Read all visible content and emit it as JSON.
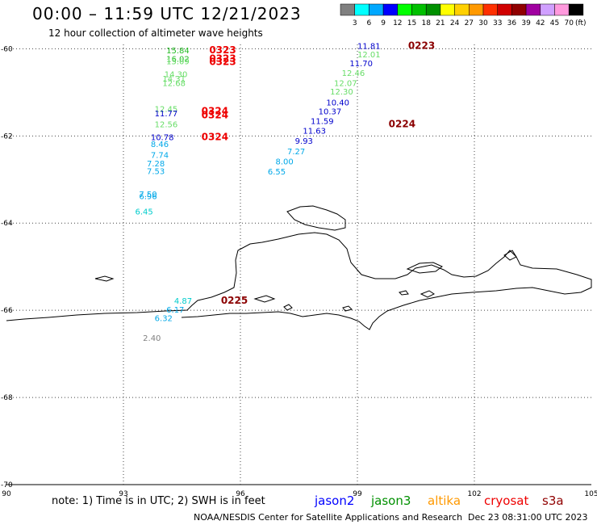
{
  "header": {
    "title": "00:00 – 11:59 UTC 12/21/2023",
    "subtitle": "12 hour collection of altimeter wave heights"
  },
  "colorbar": {
    "unit": "(ft)",
    "swatches": [
      "#808080",
      "#00ffff",
      "#00a8ff",
      "#0000ff",
      "#00ff00",
      "#00c000",
      "#009000",
      "#ffff00",
      "#ffd000",
      "#ff9900",
      "#ff3000",
      "#d00000",
      "#900000",
      "#a000a0",
      "#d0a0ff",
      "#ff99dd",
      "#000000"
    ],
    "ticks": [
      "3",
      "6",
      "9",
      "12",
      "15",
      "18",
      "21",
      "24",
      "27",
      "30",
      "33",
      "36",
      "39",
      "42",
      "45",
      "70"
    ]
  },
  "map": {
    "lon_ticks": [
      "90",
      "93",
      "96",
      "99",
      "102",
      "105"
    ],
    "lat_ticks": [
      "-60",
      "-62",
      "-64",
      "-66",
      "-68",
      "-70"
    ]
  },
  "chart_data": {
    "type": "scatter",
    "xlim": [
      90,
      105
    ],
    "ylim": [
      -70,
      -59.9
    ],
    "grid": true,
    "observations": [
      {
        "lon": 94.1,
        "lat": -60.1,
        "value": "15.84",
        "color": "#22bb22"
      },
      {
        "lon": 94.1,
        "lat": -60.3,
        "value": "16.02",
        "color": "#22bb22"
      },
      {
        "lon": 94.1,
        "lat": -60.35,
        "value": "15.09",
        "color": "#66dd66"
      },
      {
        "lon": 94.05,
        "lat": -60.65,
        "value": "14.30",
        "color": "#66dd66"
      },
      {
        "lon": 94.0,
        "lat": -60.75,
        "value": "14.31",
        "color": "#66dd66"
      },
      {
        "lon": 94.0,
        "lat": -60.85,
        "value": "12.68",
        "color": "#66dd66"
      },
      {
        "lon": 93.8,
        "lat": -61.45,
        "value": "12.45",
        "color": "#66dd66"
      },
      {
        "lon": 93.8,
        "lat": -61.55,
        "value": "11.77",
        "color": "#0000cc"
      },
      {
        "lon": 93.8,
        "lat": -61.8,
        "value": "12.56",
        "color": "#66dd66"
      },
      {
        "lon": 93.7,
        "lat": -62.1,
        "value": "10.78",
        "color": "#0000cc"
      },
      {
        "lon": 93.7,
        "lat": -62.25,
        "value": "8.46",
        "color": "#00a8e8"
      },
      {
        "lon": 93.7,
        "lat": -62.5,
        "value": "7.74",
        "color": "#00a8e8"
      },
      {
        "lon": 93.6,
        "lat": -62.7,
        "value": "7.28",
        "color": "#00a8e8"
      },
      {
        "lon": 93.6,
        "lat": -62.87,
        "value": "7.53",
        "color": "#00a8e8"
      },
      {
        "lon": 93.4,
        "lat": -63.4,
        "value": "7.50",
        "color": "#00a8e8"
      },
      {
        "lon": 93.4,
        "lat": -63.45,
        "value": "6.96",
        "color": "#00a8e8"
      },
      {
        "lon": 93.3,
        "lat": -63.8,
        "value": "6.45",
        "color": "#00cccc"
      },
      {
        "lon": 99.0,
        "lat": -60.0,
        "value": "11.81",
        "color": "#0000cc"
      },
      {
        "lon": 99.0,
        "lat": -60.2,
        "value": "12.01",
        "color": "#66dd66"
      },
      {
        "lon": 98.8,
        "lat": -60.4,
        "value": "11.70",
        "color": "#0000cc"
      },
      {
        "lon": 98.6,
        "lat": -60.62,
        "value": "12.46",
        "color": "#66dd66"
      },
      {
        "lon": 98.4,
        "lat": -60.85,
        "value": "12.07",
        "color": "#66dd66"
      },
      {
        "lon": 98.3,
        "lat": -61.05,
        "value": "12.30",
        "color": "#66dd66"
      },
      {
        "lon": 98.2,
        "lat": -61.3,
        "value": "10.40",
        "color": "#0000cc"
      },
      {
        "lon": 98.0,
        "lat": -61.5,
        "value": "10.37",
        "color": "#0000cc"
      },
      {
        "lon": 97.8,
        "lat": -61.73,
        "value": "11.59",
        "color": "#0000cc"
      },
      {
        "lon": 97.6,
        "lat": -61.95,
        "value": "11.63",
        "color": "#0000cc"
      },
      {
        "lon": 97.4,
        "lat": -62.18,
        "value": "9.93",
        "color": "#0000cc"
      },
      {
        "lon": 97.2,
        "lat": -62.42,
        "value": "7.27",
        "color": "#00a8e8"
      },
      {
        "lon": 96.9,
        "lat": -62.65,
        "value": "8.00",
        "color": "#00a8e8"
      },
      {
        "lon": 96.7,
        "lat": -62.88,
        "value": "6.55",
        "color": "#00a8e8"
      },
      {
        "lon": 94.3,
        "lat": -65.85,
        "value": "4.87",
        "color": "#00cccc"
      },
      {
        "lon": 94.1,
        "lat": -66.05,
        "value": "6.17",
        "color": "#00a8e8"
      },
      {
        "lon": 93.8,
        "lat": -66.25,
        "value": "6.32",
        "color": "#00a8e8"
      },
      {
        "lon": 93.5,
        "lat": -66.7,
        "value": "2.40",
        "color": "#808080"
      }
    ],
    "time_labels": [
      {
        "lon": 95.2,
        "lat": -60.1,
        "text": "0323",
        "color": "#ee0000"
      },
      {
        "lon": 95.2,
        "lat": -60.3,
        "text": "0323",
        "color": "#ee0000"
      },
      {
        "lon": 95.2,
        "lat": -60.37,
        "text": "0323",
        "color": "#ee0000"
      },
      {
        "lon": 95.0,
        "lat": -61.5,
        "text": "0324",
        "color": "#ee0000"
      },
      {
        "lon": 95.0,
        "lat": -61.6,
        "text": "0324",
        "color": "#ee0000"
      },
      {
        "lon": 95.0,
        "lat": -62.1,
        "text": "0324",
        "color": "#ee0000"
      },
      {
        "lon": 100.3,
        "lat": -60.0,
        "text": "0223",
        "color": "#8b0000"
      },
      {
        "lon": 99.8,
        "lat": -61.8,
        "text": "0224",
        "color": "#8b0000"
      },
      {
        "lon": 95.5,
        "lat": -65.85,
        "text": "0225",
        "color": "#8b0000"
      }
    ]
  },
  "footer": {
    "note": "note: 1) Time is in UTC; 2) SWH is in feet",
    "satellites": [
      {
        "name": "jason2",
        "color": "#0000ff"
      },
      {
        "name": "jason3",
        "color": "#009000"
      },
      {
        "name": "altika",
        "color": "#ff9900"
      },
      {
        "name": "cryosat",
        "color": "#ee0000"
      },
      {
        "name": "s3a",
        "color": "#900000"
      }
    ],
    "credit": "NOAA/NESDIS Center for Satellite Applications and Research",
    "timestamp": "Dec 23 08:31:00 UTC 2023"
  }
}
